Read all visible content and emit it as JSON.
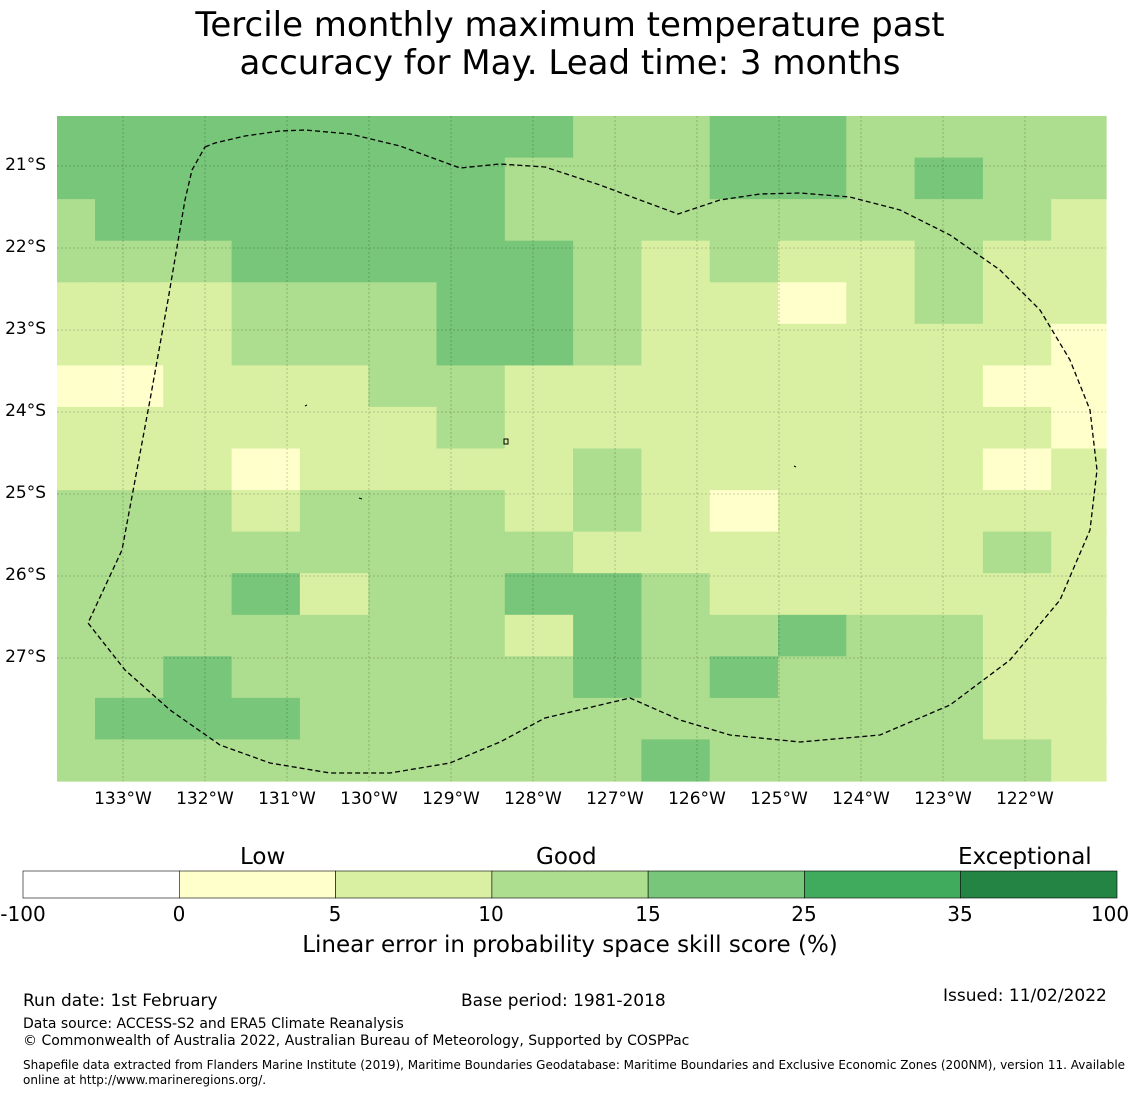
{
  "title": {
    "line1": "Tercile monthly maximum temperature past",
    "line2": "accuracy for May. Lead time: 3 months"
  },
  "colors": {
    "below0": "#ffffff",
    "c0_5": "#ffffcc",
    "c5_10": "#d9f0a3",
    "c10_15": "#addd8e",
    "c15_25": "#78c679",
    "c25_35": "#41ab5d",
    "c35_100": "#238443",
    "boundary": "#000000"
  },
  "map": {
    "y_labels": [
      "21°S",
      "22°S",
      "23°S",
      "24°S",
      "25°S",
      "26°S",
      "27°S"
    ],
    "x_labels": [
      "133°W",
      "132°W",
      "131°W",
      "130°W",
      "129°W",
      "128°W",
      "127°W",
      "126°W",
      "125°W",
      "124°W",
      "123°W",
      "122°W"
    ],
    "skill_grid": [
      [
        3,
        3,
        3,
        3,
        3,
        3,
        3,
        3,
        2,
        2,
        3,
        3,
        2,
        2,
        2,
        2
      ],
      [
        3,
        3,
        3,
        3,
        3,
        3,
        3,
        2,
        2,
        2,
        3,
        3,
        2,
        3,
        2,
        2
      ],
      [
        2,
        3,
        3,
        3,
        3,
        3,
        3,
        2,
        2,
        2,
        2,
        2,
        2,
        2,
        2,
        1
      ],
      [
        2,
        2,
        2,
        3,
        3,
        3,
        3,
        3,
        2,
        1,
        2,
        1,
        1,
        2,
        1,
        1
      ],
      [
        1,
        1,
        1,
        2,
        2,
        2,
        3,
        3,
        2,
        1,
        1,
        0,
        1,
        2,
        1,
        1
      ],
      [
        1,
        1,
        1,
        2,
        2,
        2,
        3,
        3,
        2,
        1,
        1,
        1,
        1,
        1,
        1,
        0
      ],
      [
        0,
        0,
        1,
        1,
        1,
        2,
        2,
        1,
        1,
        1,
        1,
        1,
        1,
        1,
        0,
        0
      ],
      [
        1,
        1,
        1,
        1,
        1,
        1,
        2,
        1,
        1,
        1,
        1,
        1,
        1,
        1,
        1,
        0
      ],
      [
        1,
        1,
        1,
        0,
        1,
        1,
        1,
        1,
        2,
        1,
        1,
        1,
        1,
        1,
        0,
        1
      ],
      [
        2,
        2,
        2,
        1,
        2,
        2,
        2,
        1,
        2,
        1,
        0,
        1,
        1,
        1,
        1,
        1
      ],
      [
        2,
        2,
        2,
        2,
        2,
        2,
        2,
        2,
        1,
        1,
        1,
        1,
        1,
        1,
        2,
        1
      ],
      [
        2,
        2,
        2,
        3,
        1,
        2,
        2,
        3,
        3,
        2,
        1,
        1,
        1,
        1,
        1,
        1
      ],
      [
        2,
        2,
        2,
        2,
        2,
        2,
        2,
        1,
        3,
        2,
        2,
        3,
        2,
        2,
        1,
        1
      ],
      [
        2,
        2,
        3,
        2,
        2,
        2,
        2,
        2,
        3,
        2,
        3,
        2,
        2,
        2,
        1,
        1
      ],
      [
        2,
        3,
        3,
        3,
        2,
        2,
        2,
        2,
        2,
        2,
        2,
        2,
        2,
        2,
        1,
        1
      ],
      [
        2,
        2,
        2,
        2,
        2,
        2,
        2,
        2,
        2,
        3,
        2,
        2,
        2,
        2,
        2,
        1
      ]
    ]
  },
  "colorbar": {
    "ticks": [
      "-100",
      "0",
      "5",
      "10",
      "15",
      "25",
      "35",
      "100"
    ],
    "category_labels": [
      "Low",
      "Good",
      "Exceptional"
    ],
    "title": "Linear error in probability space skill score (%)"
  },
  "footer": {
    "run_date": "Run date: 1st February",
    "base_period": "Base period: 1981-2018",
    "issued": "Issued: 11/02/2022",
    "data_source": "Data source: ACCESS-S2 and ERA5 Climate Reanalysis",
    "copyright": "© Commonwealth of Australia 2022, Australian Bureau of Meteorology, Supported by COSPPac",
    "shapefile_line1": "Shapefile data extracted from Flanders Marine Institute (2019), Maritime Boundaries Geodatabase: Maritime Boundaries and Exclusive Economic Zones (200NM), version 11. Available",
    "shapefile_line2": "online at http://www.marineregions.org/."
  }
}
